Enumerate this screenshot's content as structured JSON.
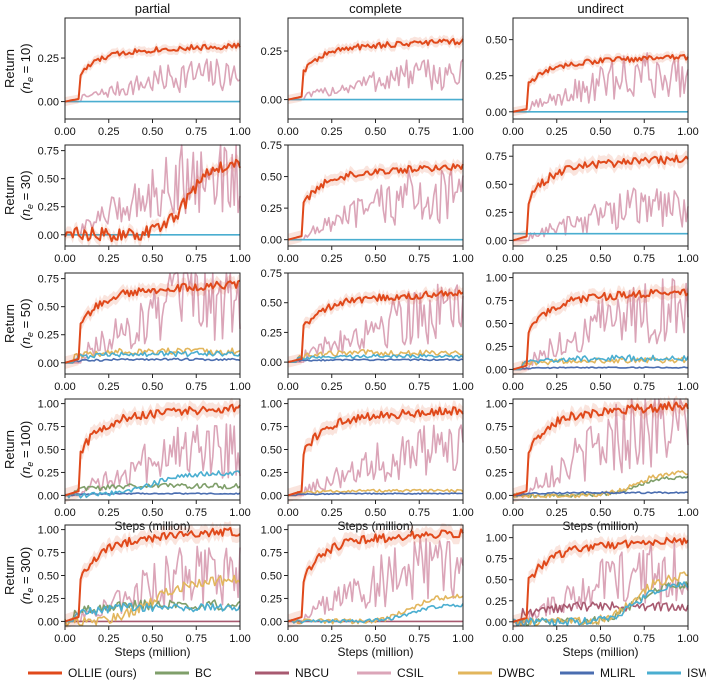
{
  "figure": {
    "columns": [
      "partial",
      "complete",
      "undirect"
    ],
    "rows": [
      {
        "label_top": "Return",
        "label_bottom": "(n",
        "sub": "e",
        "eq": " = 10)"
      },
      {
        "label_top": "Return",
        "label_bottom": "(n",
        "sub": "e",
        "eq": " = 30)"
      },
      {
        "label_top": "Return",
        "label_bottom": "(n",
        "sub": "e",
        "eq": " = 50)"
      },
      {
        "label_top": "Return",
        "label_bottom": "(n",
        "sub": "e",
        "eq": " = 100)"
      },
      {
        "label_top": "Return",
        "label_bottom": "(n",
        "sub": "e",
        "eq": " = 300)"
      }
    ],
    "xlabel": "Steps (million)",
    "xticks": [
      "0.00",
      "0.25",
      "0.50",
      "0.75",
      "1.00"
    ]
  },
  "legend": [
    {
      "name": "OLLIE (ours)",
      "color": "#e0491b"
    },
    {
      "name": "BC",
      "color": "#7f9f6a"
    },
    {
      "name": "NBCU",
      "color": "#a85a70"
    },
    {
      "name": "CSIL",
      "color": "#dba5b8"
    },
    {
      "name": "DWBC",
      "color": "#e2b65c"
    },
    {
      "name": "MLIRL",
      "color": "#4a6db0"
    },
    {
      "name": "ISWBC",
      "color": "#4aaed0"
    }
  ],
  "chart_data": [
    {
      "type": "line",
      "row": 0,
      "col": 0,
      "ylim": [
        -0.1,
        0.48
      ],
      "yticks": [
        "0.00",
        "0.25"
      ],
      "ytick_values": [
        0,
        0.25
      ],
      "x": [
        0,
        1
      ],
      "series": [
        {
          "name": "OLLIE (ours)",
          "end": 0.32,
          "shape": "rise"
        },
        {
          "name": "CSIL",
          "end": 0.18,
          "shape": "noisy"
        },
        {
          "name": "ISWBC",
          "end": 0.0,
          "shape": "flat"
        }
      ]
    },
    {
      "type": "line",
      "row": 0,
      "col": 1,
      "ylim": [
        -0.1,
        0.42
      ],
      "yticks": [
        "0.00",
        "0.25"
      ],
      "ytick_values": [
        0,
        0.25
      ],
      "x": [
        0,
        1
      ],
      "series": [
        {
          "name": "OLLIE (ours)",
          "end": 0.3,
          "shape": "rise"
        },
        {
          "name": "CSIL",
          "end": 0.15,
          "shape": "noisy"
        },
        {
          "name": "ISWBC",
          "end": 0.0,
          "shape": "flat"
        }
      ]
    },
    {
      "type": "line",
      "row": 0,
      "col": 2,
      "ylim": [
        -0.05,
        0.65
      ],
      "yticks": [
        "0.00",
        "0.25",
        "0.50"
      ],
      "ytick_values": [
        0,
        0.25,
        0.5
      ],
      "x": [
        0,
        1
      ],
      "series": [
        {
          "name": "OLLIE (ours)",
          "end": 0.38,
          "shape": "rise"
        },
        {
          "name": "CSIL",
          "end": 0.3,
          "shape": "noisy"
        },
        {
          "name": "ISWBC",
          "end": 0.0,
          "shape": "flat"
        }
      ]
    },
    {
      "type": "line",
      "row": 1,
      "col": 0,
      "ylim": [
        -0.1,
        0.8
      ],
      "yticks": [
        "0.00",
        "0.25",
        "0.50",
        "0.75"
      ],
      "ytick_values": [
        0,
        0.25,
        0.5,
        0.75
      ],
      "x": [
        0,
        1
      ],
      "series": [
        {
          "name": "OLLIE (ours)",
          "end": 0.65,
          "shape": "late"
        },
        {
          "name": "CSIL",
          "end": 0.6,
          "shape": "noisy"
        },
        {
          "name": "ISWBC",
          "end": 0.0,
          "shape": "flat"
        }
      ]
    },
    {
      "type": "line",
      "row": 1,
      "col": 1,
      "ylim": [
        -0.05,
        0.75
      ],
      "yticks": [
        "0.00",
        "0.25",
        "0.50",
        "0.75"
      ],
      "ytick_values": [
        0,
        0.25,
        0.5,
        0.75
      ],
      "x": [
        0,
        1
      ],
      "series": [
        {
          "name": "OLLIE (ours)",
          "end": 0.58,
          "shape": "rise"
        },
        {
          "name": "CSIL",
          "end": 0.4,
          "shape": "noisy"
        },
        {
          "name": "ISWBC",
          "end": 0.0,
          "shape": "flat"
        }
      ]
    },
    {
      "type": "line",
      "row": 1,
      "col": 2,
      "ylim": [
        -0.05,
        0.85
      ],
      "yticks": [
        "0.00",
        "0.25",
        "0.50",
        "0.75"
      ],
      "ytick_values": [
        0,
        0.25,
        0.5,
        0.75
      ],
      "x": [
        0,
        1
      ],
      "series": [
        {
          "name": "OLLIE (ours)",
          "end": 0.73,
          "shape": "rise"
        },
        {
          "name": "CSIL",
          "end": 0.35,
          "shape": "noisy"
        },
        {
          "name": "ISWBC",
          "end": 0.06,
          "shape": "flat"
        }
      ]
    },
    {
      "type": "line",
      "row": 2,
      "col": 0,
      "ylim": [
        -0.1,
        0.8
      ],
      "yticks": [
        "0.00",
        "0.25",
        "0.50",
        "0.75"
      ],
      "ytick_values": [
        0,
        0.25,
        0.5,
        0.75
      ],
      "x": [
        0,
        1
      ],
      "series": [
        {
          "name": "OLLIE (ours)",
          "end": 0.7,
          "shape": "rise"
        },
        {
          "name": "CSIL",
          "end": 0.65,
          "shape": "noisy"
        },
        {
          "name": "DWBC",
          "end": 0.1,
          "shape": "low"
        },
        {
          "name": "ISWBC",
          "end": 0.08,
          "shape": "low"
        },
        {
          "name": "MLIRL",
          "end": 0.03,
          "shape": "low"
        }
      ]
    },
    {
      "type": "line",
      "row": 2,
      "col": 1,
      "ylim": [
        -0.1,
        0.75
      ],
      "yticks": [
        "0.00",
        "0.25",
        "0.50",
        "0.75"
      ],
      "ytick_values": [
        0,
        0.25,
        0.5,
        0.75
      ],
      "x": [
        0,
        1
      ],
      "series": [
        {
          "name": "OLLIE (ours)",
          "end": 0.58,
          "shape": "rise"
        },
        {
          "name": "CSIL",
          "end": 0.48,
          "shape": "noisy"
        },
        {
          "name": "DWBC",
          "end": 0.08,
          "shape": "low"
        },
        {
          "name": "ISWBC",
          "end": 0.05,
          "shape": "low"
        },
        {
          "name": "MLIRL",
          "end": 0.02,
          "shape": "low"
        }
      ]
    },
    {
      "type": "line",
      "row": 2,
      "col": 2,
      "ylim": [
        -0.05,
        1.05
      ],
      "yticks": [
        "0.00",
        "0.25",
        "0.50",
        "0.75",
        "1.00"
      ],
      "ytick_values": [
        0,
        0.25,
        0.5,
        0.75,
        1
      ],
      "x": [
        0,
        1
      ],
      "series": [
        {
          "name": "OLLIE (ours)",
          "end": 0.85,
          "shape": "rise"
        },
        {
          "name": "CSIL",
          "end": 0.75,
          "shape": "noisy"
        },
        {
          "name": "DWBC",
          "end": 0.1,
          "shape": "low"
        },
        {
          "name": "ISWBC",
          "end": 0.12,
          "shape": "low"
        },
        {
          "name": "MLIRL",
          "end": 0.02,
          "shape": "low"
        }
      ]
    },
    {
      "type": "line",
      "row": 3,
      "col": 0,
      "ylim": [
        -0.05,
        1.05
      ],
      "yticks": [
        "0.00",
        "0.25",
        "0.50",
        "0.75",
        "1.00"
      ],
      "ytick_values": [
        0,
        0.25,
        0.5,
        0.75,
        1
      ],
      "x": [
        0,
        1
      ],
      "series": [
        {
          "name": "OLLIE (ours)",
          "end": 0.95,
          "shape": "rise"
        },
        {
          "name": "CSIL",
          "end": 0.6,
          "shape": "noisy"
        },
        {
          "name": "ISWBC",
          "end": 0.25,
          "shape": "mid"
        },
        {
          "name": "BC",
          "end": 0.1,
          "shape": "low"
        },
        {
          "name": "MLIRL",
          "end": 0.02,
          "shape": "low"
        }
      ]
    },
    {
      "type": "line",
      "row": 3,
      "col": 1,
      "ylim": [
        -0.05,
        1.05
      ],
      "yticks": [
        "0.00",
        "0.25",
        "0.50",
        "0.75",
        "1.00"
      ],
      "ytick_values": [
        0,
        0.25,
        0.5,
        0.75,
        1
      ],
      "x": [
        0,
        1
      ],
      "series": [
        {
          "name": "OLLIE (ours)",
          "end": 0.93,
          "shape": "rise"
        },
        {
          "name": "CSIL",
          "end": 0.55,
          "shape": "noisy"
        },
        {
          "name": "DWBC",
          "end": 0.05,
          "shape": "low"
        },
        {
          "name": "MLIRL",
          "end": 0.02,
          "shape": "low"
        }
      ]
    },
    {
      "type": "line",
      "row": 3,
      "col": 2,
      "ylim": [
        -0.05,
        1.05
      ],
      "yticks": [
        "0.00",
        "0.25",
        "0.50",
        "0.75",
        "1.00"
      ],
      "ytick_values": [
        0,
        0.25,
        0.5,
        0.75,
        1
      ],
      "x": [
        0,
        1
      ],
      "series": [
        {
          "name": "OLLIE (ours)",
          "end": 0.98,
          "shape": "rise"
        },
        {
          "name": "CSIL",
          "end": 0.85,
          "shape": "noisy"
        },
        {
          "name": "DWBC",
          "end": 0.25,
          "shape": "late"
        },
        {
          "name": "BC",
          "end": 0.2,
          "shape": "late"
        },
        {
          "name": "MLIRL",
          "end": 0.03,
          "shape": "low"
        }
      ]
    },
    {
      "type": "line",
      "row": 4,
      "col": 0,
      "ylim": [
        -0.05,
        1.05
      ],
      "yticks": [
        "0.00",
        "0.25",
        "0.50",
        "0.75",
        "1.00"
      ],
      "ytick_values": [
        0,
        0.25,
        0.5,
        0.75,
        1
      ],
      "x": [
        0,
        1
      ],
      "series": [
        {
          "name": "OLLIE (ours)",
          "end": 0.98,
          "shape": "rise"
        },
        {
          "name": "CSIL",
          "end": 0.6,
          "shape": "noisy"
        },
        {
          "name": "DWBC",
          "end": 0.45,
          "shape": "mid"
        },
        {
          "name": "BC",
          "end": 0.18,
          "shape": "low"
        },
        {
          "name": "ISWBC",
          "end": 0.15,
          "shape": "low"
        },
        {
          "name": "NBCU",
          "end": 0.0,
          "shape": "flat"
        }
      ]
    },
    {
      "type": "line",
      "row": 4,
      "col": 1,
      "ylim": [
        -0.05,
        1.05
      ],
      "yticks": [
        "0.00",
        "0.25",
        "0.50",
        "0.75",
        "1.00"
      ],
      "ytick_values": [
        0,
        0.25,
        0.5,
        0.75,
        1
      ],
      "x": [
        0,
        1
      ],
      "series": [
        {
          "name": "OLLIE (ours)",
          "end": 0.97,
          "shape": "rise"
        },
        {
          "name": "CSIL",
          "end": 0.65,
          "shape": "noisy"
        },
        {
          "name": "DWBC",
          "end": 0.28,
          "shape": "late"
        },
        {
          "name": "ISWBC",
          "end": 0.18,
          "shape": "late"
        },
        {
          "name": "NBCU",
          "end": 0.0,
          "shape": "flat"
        }
      ]
    },
    {
      "type": "line",
      "row": 4,
      "col": 2,
      "ylim": [
        -0.05,
        1.15
      ],
      "yticks": [
        "0.00",
        "0.25",
        "0.50",
        "0.75",
        "1.00"
      ],
      "ytick_values": [
        0,
        0.25,
        0.5,
        0.75,
        1
      ],
      "x": [
        0,
        1
      ],
      "series": [
        {
          "name": "OLLIE (ours)",
          "end": 0.97,
          "shape": "rise"
        },
        {
          "name": "CSIL",
          "end": 0.7,
          "shape": "noisy"
        },
        {
          "name": "DWBC",
          "end": 0.55,
          "shape": "late"
        },
        {
          "name": "BC",
          "end": 0.45,
          "shape": "late"
        },
        {
          "name": "ISWBC",
          "end": 0.45,
          "shape": "late"
        },
        {
          "name": "NBCU",
          "end": 0.18,
          "shape": "low"
        }
      ]
    }
  ]
}
